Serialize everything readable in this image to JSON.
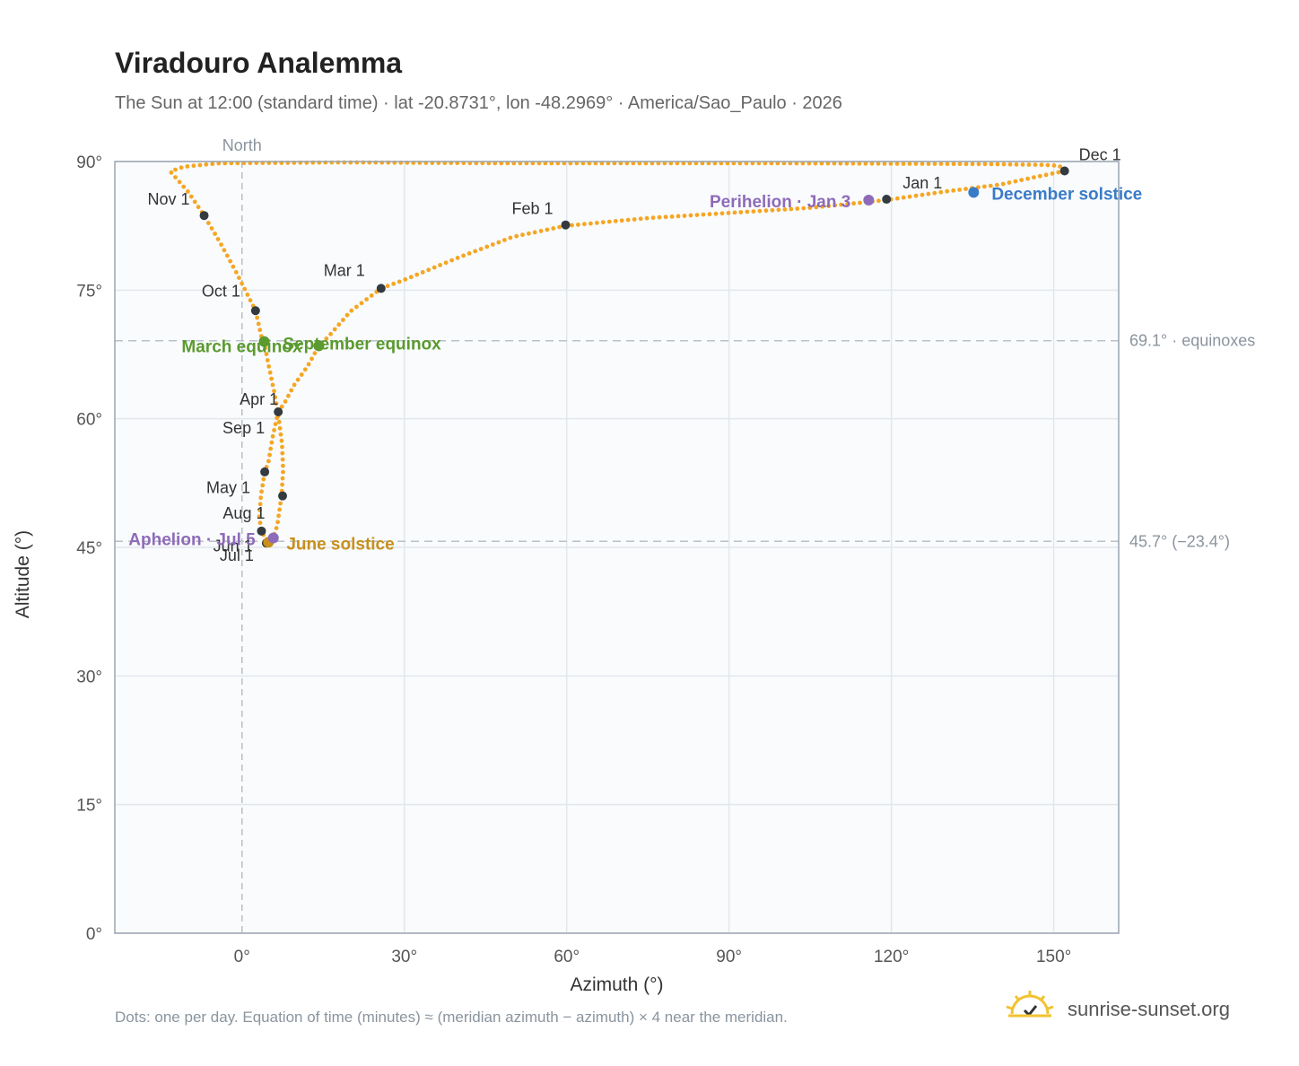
{
  "header": {
    "title": "Viradouro Analemma",
    "subtitle": "The Sun at 12:00 (standard time) · lat -20.8731°, lon -48.2969° · America/Sao_Paulo · 2026"
  },
  "footer": {
    "note": "Dots: one per day. Equation of time (minutes) ≈ (meridian azimuth − azimuth) × 4 near the meridian.",
    "brand": "sunrise-sunset.org"
  },
  "colors": {
    "curve": "#f5a623",
    "month_marker": "#333a40",
    "equinox": "#5a9a2e",
    "june_solstice": "#c8901a",
    "december_solstice": "#3a7bc8",
    "apsis": "#8e6bb8",
    "grid": "#e3e7ec",
    "plot_bg": "#f9fbfd",
    "frame": "#9aa5b1",
    "ref_line": "#b8c0c8"
  },
  "chart_data": {
    "type": "scatter",
    "title": "Viradouro Analemma",
    "xlabel": "Azimuth (°)",
    "ylabel": "Altitude (°)",
    "xlim": [
      -23.5,
      162
    ],
    "ylim": [
      0,
      90
    ],
    "x_ticks": [
      0,
      30,
      60,
      90,
      120,
      150
    ],
    "x_tick_labels": [
      "0°",
      "30°",
      "60°",
      "90°",
      "120°",
      "150°"
    ],
    "y_ticks": [
      0,
      15,
      30,
      45,
      60,
      75,
      90
    ],
    "y_tick_labels": [
      "0°",
      "15°",
      "30°",
      "45°",
      "60°",
      "75°",
      "90°"
    ],
    "grid": true,
    "north_line": {
      "x": 0,
      "label": "North"
    },
    "reference_lines": [
      {
        "y": 69.1,
        "label": "69.1° · equinoxes"
      },
      {
        "y": 45.7,
        "label": "45.7° (−23.4°)"
      }
    ],
    "curve_anchors": [
      [
        152,
        88.9
      ],
      [
        140,
        87.3
      ],
      [
        130,
        86.5
      ],
      [
        119,
        85.5
      ],
      [
        105,
        84.6
      ],
      [
        90,
        84.0
      ],
      [
        75,
        83.4
      ],
      [
        59.8,
        82.5
      ],
      [
        50,
        81.2
      ],
      [
        40,
        78.8
      ],
      [
        30,
        76.2
      ],
      [
        25.7,
        75.2
      ],
      [
        20,
        72.5
      ],
      [
        16,
        69.6
      ],
      [
        14.2,
        68.5
      ],
      [
        12,
        66.0
      ],
      [
        9.7,
        64.0
      ],
      [
        8,
        62.0
      ],
      [
        6.7,
        60.8
      ],
      [
        5.7,
        58.0
      ],
      [
        4.9,
        55.0
      ],
      [
        4.2,
        53.8
      ],
      [
        3.5,
        51.0
      ],
      [
        3.2,
        48.5
      ],
      [
        3.6,
        46.9
      ],
      [
        4.6,
        45.7
      ],
      [
        5.7,
        46.0
      ],
      [
        6.5,
        47.5
      ],
      [
        7.3,
        51.0
      ],
      [
        7.6,
        54.0
      ],
      [
        7.4,
        57.0
      ],
      [
        6.8,
        60.0
      ],
      [
        6.0,
        63.0
      ],
      [
        5.0,
        66.0
      ],
      [
        4.2,
        68.5
      ],
      [
        3.8,
        69.0
      ],
      [
        2.5,
        72.6
      ],
      [
        -1,
        77.0
      ],
      [
        -4,
        80.5
      ],
      [
        -7,
        83.7
      ],
      [
        -10,
        86.5
      ],
      [
        -13.2,
        88.8
      ],
      [
        -12.5,
        89.0
      ],
      [
        -10.7,
        89.4
      ],
      [
        -4.2,
        89.8
      ],
      [
        20,
        89.9
      ],
      [
        46.3,
        89.8
      ],
      [
        100,
        89.8
      ],
      [
        138.5,
        89.7
      ],
      [
        148.5,
        89.6
      ],
      [
        151,
        89.5
      ],
      [
        152,
        88.9
      ]
    ],
    "month_markers": [
      {
        "label": "Jan 1",
        "x": 119.1,
        "y": 85.6
      },
      {
        "label": "Feb 1",
        "x": 59.8,
        "y": 82.6
      },
      {
        "label": "Mar 1",
        "x": 25.7,
        "y": 75.2
      },
      {
        "label": "Apr 1",
        "x": 6.7,
        "y": 60.8
      },
      {
        "label": "May 1",
        "x": 7.5,
        "y": 51.0
      },
      {
        "label": "Jun 1",
        "x": 4.8,
        "y": 45.6
      },
      {
        "label": "Jul 1",
        "x": 4.5,
        "y": 45.5
      },
      {
        "label": "Aug 1",
        "x": 3.6,
        "y": 46.9
      },
      {
        "label": "Sep 1",
        "x": 4.2,
        "y": 53.8
      },
      {
        "label": "Oct 1",
        "x": 2.5,
        "y": 72.6
      },
      {
        "label": "Nov 1",
        "x": -7.0,
        "y": 83.7
      },
      {
        "label": "Dec 1",
        "x": 152.0,
        "y": 88.9
      }
    ],
    "events": [
      {
        "label": "March equinox",
        "x": 4.1,
        "y": 69.0,
        "color_key": "equinox"
      },
      {
        "label": "September equinox",
        "x": 14.2,
        "y": 68.5,
        "color_key": "equinox"
      },
      {
        "label": "June solstice",
        "x": 4.9,
        "y": 45.6,
        "color_key": "june_solstice"
      },
      {
        "label": "December solstice",
        "x": 135.2,
        "y": 86.4,
        "color_key": "december_solstice"
      },
      {
        "label": "Perihelion · Jan 3",
        "x": 115.8,
        "y": 85.5,
        "color_key": "apsis"
      },
      {
        "label": "Aphelion · Jul 5",
        "x": 5.8,
        "y": 46.1,
        "color_key": "apsis"
      }
    ]
  }
}
